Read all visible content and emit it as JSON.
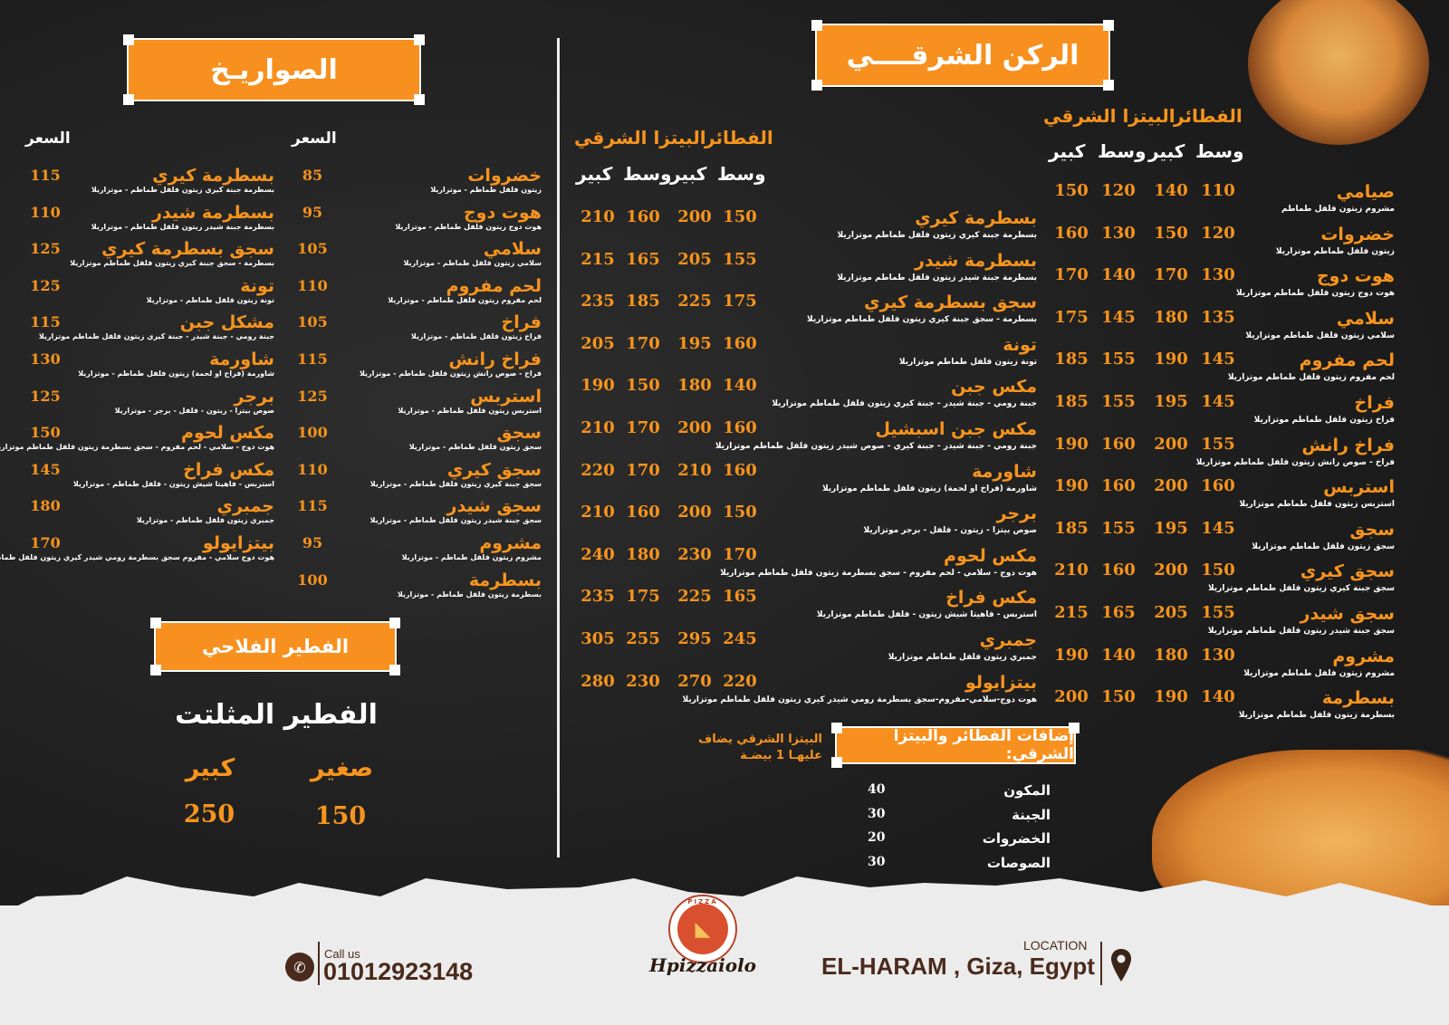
{
  "colors": {
    "accent": "#f7941d",
    "background": "#1c1c1c",
    "footer": "#ececec",
    "footer_text": "#4a2a1c"
  },
  "rockets": {
    "title": "الصواريـخ",
    "price_header": "السعر",
    "right_column": [
      {
        "name": "خضروات",
        "desc": "زيتون  فلفل  طماطم - موتزاريلا",
        "price": "85"
      },
      {
        "name": "هوت دوج",
        "desc": "هوت دوج  زيتون  فلفل  طماطم - موتزاريلا",
        "price": "95"
      },
      {
        "name": "سلامي",
        "desc": "سلامي  زيتون  فلفل  طماطم - موتزاريلا",
        "price": "105"
      },
      {
        "name": "لحم مفروم",
        "desc": "لحم مفروم  زيتون  فلفل  طماطم - موتزاريلا",
        "price": "110"
      },
      {
        "name": "فراخ",
        "desc": "فراخ  زيتون  فلفل  طماطم - موتزاريلا",
        "price": "105"
      },
      {
        "name": "فراخ رانش",
        "desc": "فراخ - صوص رانش  زيتون  فلفل  طماطم - موتزاريلا",
        "price": "115"
      },
      {
        "name": "استربس",
        "desc": "استربس  زيتون  فلفل  طماطم - موتزاريلا",
        "price": "125"
      },
      {
        "name": "سجق",
        "desc": "سجق  زيتون  فلفل  طماطم - موتزاريلا",
        "price": "100"
      },
      {
        "name": "سجق كيري",
        "desc": "سجق  جبنة كيري  زيتون  فلفل  طماطم - موتزاريلا",
        "price": "110"
      },
      {
        "name": "سجق شيدر",
        "desc": "سجق  جبنة شيدر  زيتون  فلفل  طماطم - موتزاريلا",
        "price": "115"
      },
      {
        "name": "مشروم",
        "desc": "مشروم  زيتون  فلفل  طماطم - موتزاريلا",
        "price": "95"
      },
      {
        "name": "بسطرمة",
        "desc": "بسطرمة  زيتون  فلفل  طماطم - موتزاريلا",
        "price": "100"
      }
    ],
    "left_column": [
      {
        "name": "بسطرمة كيري",
        "desc": "بسطرمة  جبنة كيري  زيتون  فلفل  طماطم - موتزاريلا",
        "price": "115"
      },
      {
        "name": "بسطرمة شيدر",
        "desc": "بسطرمة  جبنة شيدر  زيتون  فلفل  طماطم - موتزاريلا",
        "price": "110"
      },
      {
        "name": "سجق بسطرمة كيري",
        "desc": "بسطرمة - سجق  جبنة كيري  زيتون  فلفل  طماطم  موتزاريلا",
        "price": "125"
      },
      {
        "name": "تونة",
        "desc": "تونة  زيتون  فلفل  طماطم - موتزاريلا",
        "price": "125"
      },
      {
        "name": "مشكل جبن",
        "desc": "جبنة رومي - جبنة شيدر - جبنة كيري  زيتون  فلفل  طماطم  موتزاريلا",
        "price": "115"
      },
      {
        "name": "شاورمة",
        "desc": "شاورمة (فراخ او لحمة)  زيتون  فلفل  طماطم - موتزاريلا",
        "price": "130"
      },
      {
        "name": "برجر",
        "desc": "صوص بيتزا - زيتون - فلفل - برجر - موتزاريلا",
        "price": "125"
      },
      {
        "name": "مكس لحوم",
        "desc": "هوت دوج - سلامي - لحم مفروم - سجق  بسطرمة  زيتون  فلفل  طماطم  موتزاريلا",
        "price": "150"
      },
      {
        "name": "مكس فراخ",
        "desc": "استربس - فاهيتا  شيش  زيتون - فلفل  طماطم - موتزاريلا",
        "price": "145"
      },
      {
        "name": "جمبري",
        "desc": "جمبري  زيتون  فلفل  طماطم - موتزاريلا",
        "price": "180"
      },
      {
        "name": "بيتزايولو",
        "desc": "هوت دوج سلامي - مفروم سجق بسطرمة رومي شيدر كيري زيتون فلفل طماطم موتزاريلا",
        "price": "170"
      }
    ]
  },
  "fallahi": {
    "title": "الفطير الفلاحي",
    "item": "الفطير المثلتت",
    "small_label": "صغير",
    "large_label": "كبير",
    "small_price": "150",
    "large_price": "250"
  },
  "eastern": {
    "title": "الركن الشرقــــي",
    "feteer_label": "الفطائر",
    "pizza_label": "البيتزا الشرقي",
    "medium_label": "وسط",
    "large_label": "كبير",
    "right_column": [
      {
        "name": "صيامي",
        "desc": "مشروم  زيتون  فلفل  طماطم",
        "prices": [
          "110",
          "140",
          "120",
          "150"
        ]
      },
      {
        "name": "خضروات",
        "desc": "زيتون  فلفل  طماطم  موتزاريلا",
        "prices": [
          "120",
          "150",
          "130",
          "160"
        ]
      },
      {
        "name": "هوت دوج",
        "desc": "هوت دوج  زيتون  فلفل  طماطم  موتزاريلا",
        "prices": [
          "130",
          "170",
          "140",
          "170"
        ]
      },
      {
        "name": "سلامي",
        "desc": "سلامي  زيتون  فلفل  طماطم  موتزاريلا",
        "prices": [
          "135",
          "180",
          "145",
          "175"
        ]
      },
      {
        "name": "لحم مفروم",
        "desc": "لحم مفروم  زيتون  فلفل  طماطم  موتزاريلا",
        "prices": [
          "145",
          "190",
          "155",
          "185"
        ]
      },
      {
        "name": "فراخ",
        "desc": "فراخ  زيتون  فلفل  طماطم  موتزاريلا",
        "prices": [
          "145",
          "195",
          "155",
          "185"
        ]
      },
      {
        "name": "فراخ رانش",
        "desc": "فراخ - صوص رانش  زيتون  فلفل  طماطم  موتزاريلا",
        "prices": [
          "155",
          "200",
          "160",
          "190"
        ]
      },
      {
        "name": "استربس",
        "desc": "استربس  زيتون  فلفل  طماطم  موتزاريلا",
        "prices": [
          "160",
          "200",
          "160",
          "190"
        ]
      },
      {
        "name": "سجق",
        "desc": "سجق  زيتون  فلفل  طماطم  موتزاريلا",
        "prices": [
          "145",
          "195",
          "155",
          "185"
        ]
      },
      {
        "name": "سجق كيري",
        "desc": "سجق  جبنة كيري  زيتون  فلفل  طماطم  موتزاريلا",
        "prices": [
          "150",
          "200",
          "160",
          "210"
        ]
      },
      {
        "name": "سجق شيدر",
        "desc": "سجق  جبنة شيدر  زيتون  فلفل  طماطم  موتزاريلا",
        "prices": [
          "155",
          "205",
          "165",
          "215"
        ]
      },
      {
        "name": "مشروم",
        "desc": "مشروم  زيتون  فلفل  طماطم  موتزاريلا",
        "prices": [
          "130",
          "180",
          "140",
          "190"
        ]
      },
      {
        "name": "بسطرمة",
        "desc": "بسطرمة  زيتون  فلفل  طماطم  موتزاريلا",
        "prices": [
          "140",
          "190",
          "150",
          "200"
        ]
      }
    ],
    "middle_column": [
      {
        "name": "بسطرمة كيري",
        "desc": "بسطرمة  جبنة كيري  زيتون  فلفل  طماطم  موتزاريلا",
        "prices": [
          "150",
          "200",
          "160",
          "210"
        ]
      },
      {
        "name": "بسطرمة شيدر",
        "desc": "بسطرمة  جبنة شيدر  زيتون  فلفل  طماطم  موتزاريلا",
        "prices": [
          "155",
          "205",
          "165",
          "215"
        ]
      },
      {
        "name": "سجق بسطرمة كيري",
        "desc": "بسطرمة - سجق  جبنة كيري  زيتون  فلفل  طماطم  موتزاريلا",
        "prices": [
          "175",
          "225",
          "185",
          "235"
        ]
      },
      {
        "name": "تونة",
        "desc": "تونة  زيتون  فلفل  طماطم  موتزاريلا",
        "prices": [
          "160",
          "195",
          "170",
          "205"
        ]
      },
      {
        "name": "مكس جبن",
        "desc": "جبنة رومي - جبنة شيدر - جبنة كيري  زيتون  فلفل  طماطم  موتزاريلا",
        "prices": [
          "140",
          "180",
          "150",
          "190"
        ]
      },
      {
        "name": "مكس جبن اسبشيل",
        "desc": "جبنة رومي - جبنة شيدر - جبنة كيري - صوص شيدر  زيتون  فلفل  طماطم  موتزاريلا",
        "prices": [
          "160",
          "200",
          "170",
          "210"
        ]
      },
      {
        "name": "شاورمة",
        "desc": "شاورمة (فراخ او لحمة)  زيتون  فلفل  طماطم  موتزاريلا",
        "prices": [
          "160",
          "210",
          "170",
          "220"
        ]
      },
      {
        "name": "برجر",
        "desc": "صوص بيتزا - زيتون - فلفل - برجر  موتزاريلا",
        "prices": [
          "150",
          "200",
          "160",
          "210"
        ]
      },
      {
        "name": "مكس لحوم",
        "desc": "هوت دوج - سلامي - لحم مفروم - سجق  بسطرمة  زيتون  فلفل  طماطم  موتزاريلا",
        "prices": [
          "170",
          "230",
          "180",
          "240"
        ]
      },
      {
        "name": "مكس فراخ",
        "desc": "استربس - فاهيتا  شيش  زيتون - فلفل  طماطم  موتزاريلا",
        "prices": [
          "165",
          "225",
          "175",
          "235"
        ]
      },
      {
        "name": "جمبري",
        "desc": "جمبري  زيتون  فلفل  طماطم  موتزاريلا",
        "prices": [
          "245",
          "295",
          "255",
          "305"
        ]
      },
      {
        "name": "بيتزايولو",
        "desc": "هوت دوج-سلامي-مفروم-سجق بسطرمة رومي شيدر  كيري زيتون فلفل طماطم موتزاريلا",
        "prices": [
          "220",
          "270",
          "230",
          "280"
        ]
      }
    ]
  },
  "extras": {
    "title": "إضافات الفطائر والبيتزا الشرقي:",
    "note_line1": "البيتزا الشرقي يضاف",
    "note_line2": "عليهـا 1 بيضـة",
    "items": [
      {
        "name": "المكون",
        "price": "40"
      },
      {
        "name": "الجبنة",
        "price": "30"
      },
      {
        "name": "الخضروات",
        "price": "20"
      },
      {
        "name": "الصوصات",
        "price": "30"
      }
    ]
  },
  "footer": {
    "call_label": "Call us",
    "phone": "01012923148",
    "logo_top": "PIZZA",
    "logo_name": "Hpizzaiolo",
    "location_label": "LOCATION",
    "location": "EL-HARAM , Giza, Egypt"
  }
}
